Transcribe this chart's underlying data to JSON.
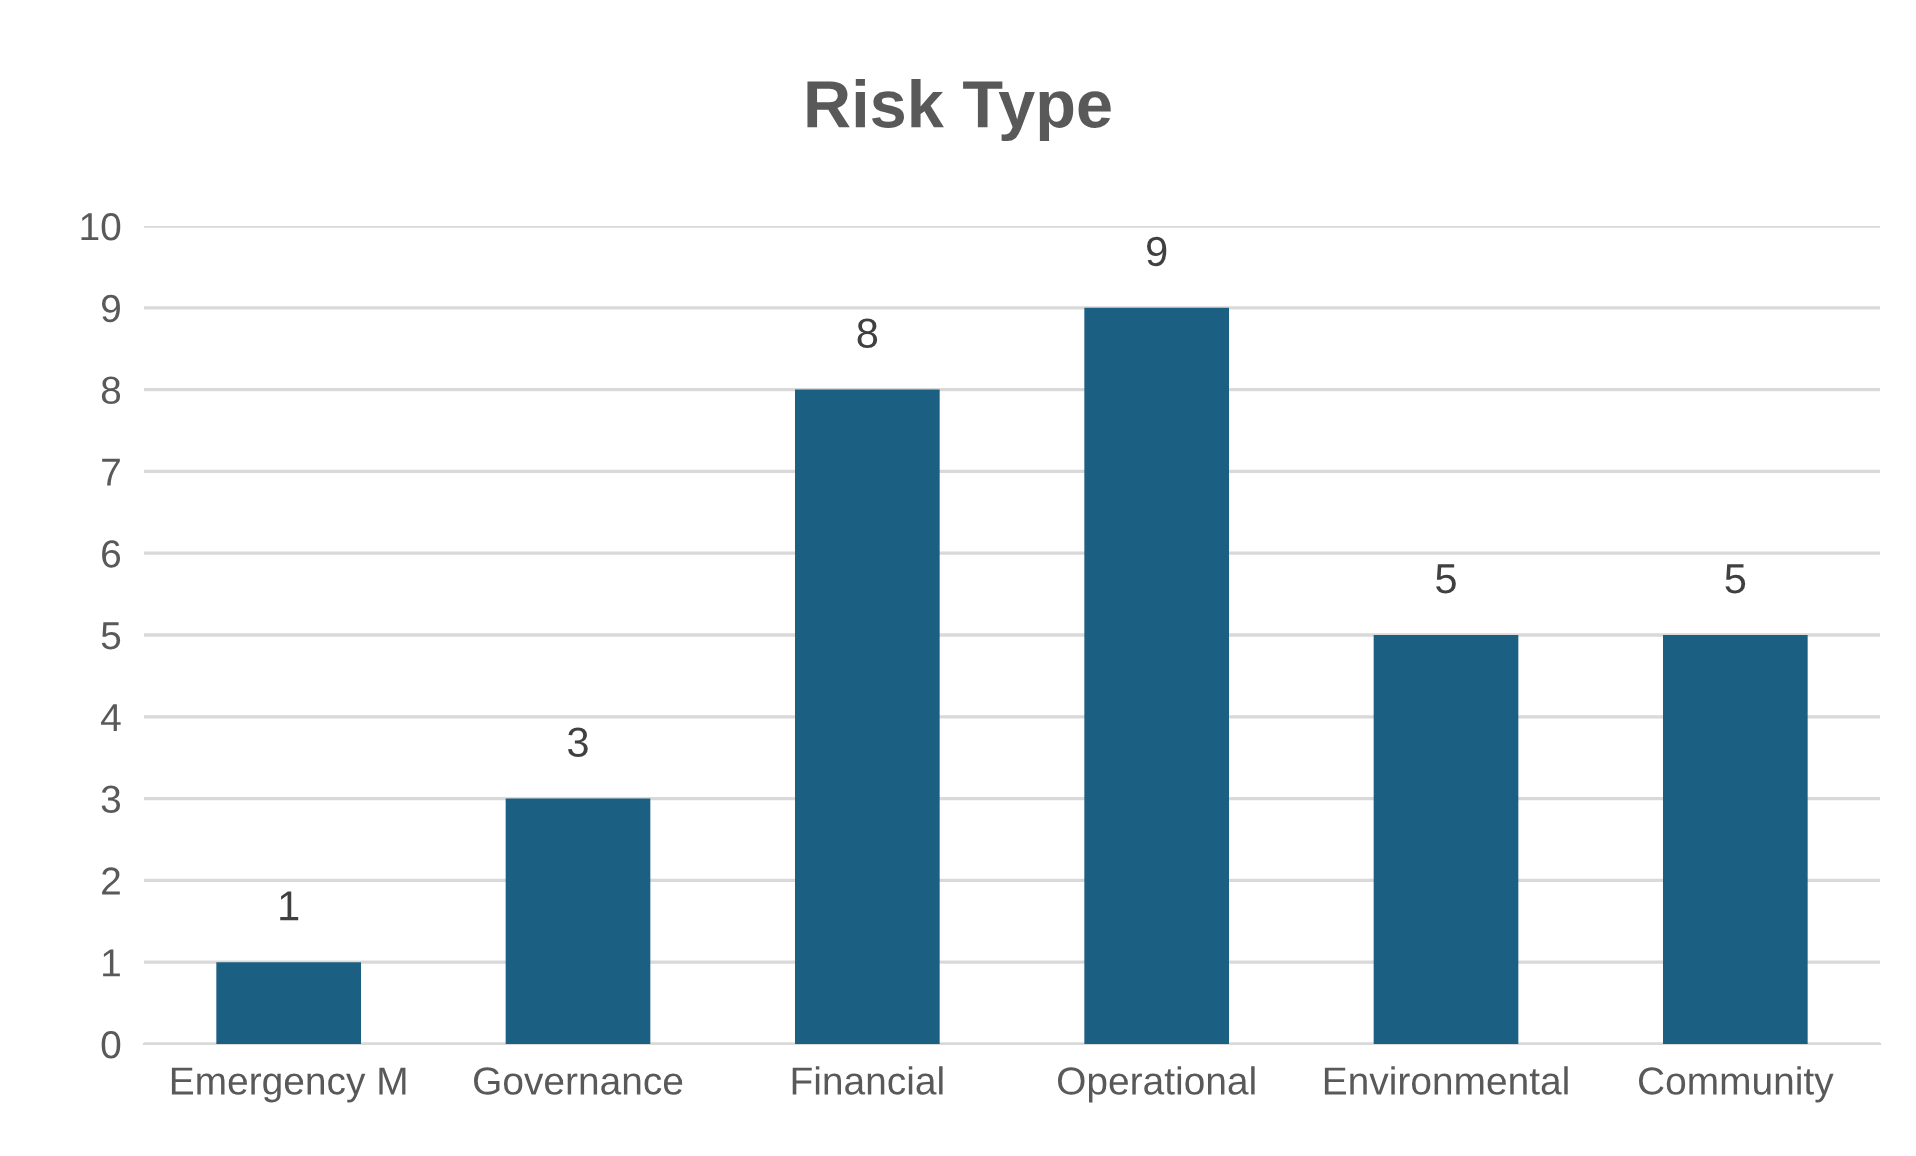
{
  "chart_data": {
    "type": "bar",
    "title": "Risk Type",
    "categories": [
      "Emergency M",
      "Governance",
      "Financial",
      "Operational",
      "Environmental",
      "Community"
    ],
    "values": [
      1,
      3,
      8,
      9,
      5,
      5
    ],
    "color": "#1b5f82",
    "ylim": [
      0,
      10
    ],
    "yticks": [
      0,
      1,
      2,
      3,
      4,
      5,
      6,
      7,
      8,
      9,
      10
    ],
    "grid": "y",
    "data_labels": true
  }
}
